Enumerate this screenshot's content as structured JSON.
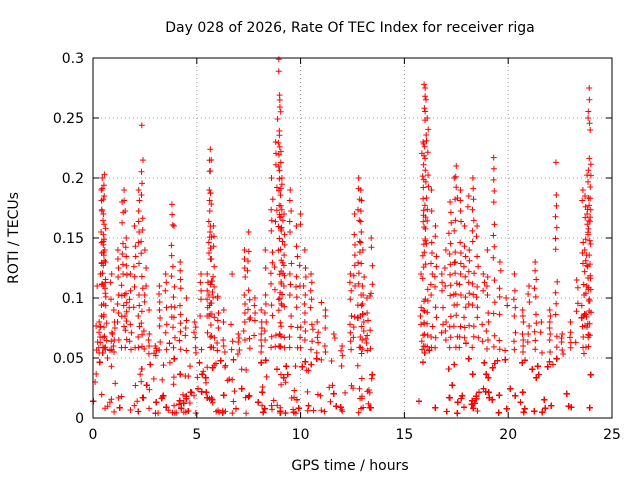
{
  "chart_data": {
    "type": "scatter",
    "title": "Day 028 of 2026, Rate Of TEC Index for receiver riga",
    "xlabel": "GPS time / hours",
    "ylabel": "ROTI / TECUs",
    "xlim": [
      0,
      25
    ],
    "ylim": [
      0,
      0.3
    ],
    "x_ticks": [
      0,
      5,
      10,
      15,
      20,
      25
    ],
    "y_ticks": [
      0,
      0.05,
      0.1,
      0.15,
      0.2,
      0.25,
      0.3
    ],
    "x_tick_labels": [
      "0",
      "5",
      "10",
      "15",
      "20",
      "25"
    ],
    "y_tick_labels": [
      "0",
      "0.05",
      "0.1",
      "0.15",
      "0.2",
      "0.25",
      "0.3"
    ],
    "grid": true,
    "marker": "plus",
    "series_color": "#ff0000",
    "series": [
      {
        "name": "ROTI",
        "points": [
          [
            0.1,
            0.03
          ],
          [
            0.2,
            0.11
          ],
          [
            0.3,
            0.08
          ],
          [
            0.4,
            0.19
          ],
          [
            0.45,
            0.2
          ],
          [
            0.5,
            0.17
          ],
          [
            0.55,
            0.203
          ],
          [
            0.6,
            0.13
          ],
          [
            0.7,
            0.05
          ],
          [
            0.9,
            0.12
          ],
          [
            1.0,
            0.09
          ],
          [
            1.2,
            0.14
          ],
          [
            1.4,
            0.18
          ],
          [
            1.5,
            0.19
          ],
          [
            1.6,
            0.15
          ],
          [
            1.8,
            0.12
          ],
          [
            2.0,
            0.16
          ],
          [
            2.2,
            0.19
          ],
          [
            2.35,
            0.244
          ],
          [
            2.5,
            0.14
          ],
          [
            2.7,
            0.09
          ],
          [
            3.0,
            0.06
          ],
          [
            3.2,
            0.11
          ],
          [
            3.5,
            0.12
          ],
          [
            3.8,
            0.178
          ],
          [
            3.9,
            0.16
          ],
          [
            4.2,
            0.13
          ],
          [
            4.5,
            0.1
          ],
          [
            4.9,
            0.08
          ],
          [
            5.2,
            0.12
          ],
          [
            5.5,
            0.12
          ],
          [
            5.6,
            0.19
          ],
          [
            5.65,
            0.224
          ],
          [
            5.7,
            0.215
          ],
          [
            5.8,
            0.16
          ],
          [
            6.0,
            0.1
          ],
          [
            6.3,
            0.09
          ],
          [
            6.7,
            0.12
          ],
          [
            7.0,
            0.07
          ],
          [
            7.3,
            0.14
          ],
          [
            7.5,
            0.155
          ],
          [
            7.8,
            0.1
          ],
          [
            8.1,
            0.09
          ],
          [
            8.3,
            0.14
          ],
          [
            8.6,
            0.2
          ],
          [
            8.8,
            0.23
          ],
          [
            8.95,
            0.299
          ],
          [
            9.0,
            0.265
          ],
          [
            9.05,
            0.222
          ],
          [
            9.1,
            0.2
          ],
          [
            9.2,
            0.17
          ],
          [
            9.5,
            0.19
          ],
          [
            9.8,
            0.16
          ],
          [
            10.0,
            0.17
          ],
          [
            10.2,
            0.14
          ],
          [
            10.5,
            0.12
          ],
          [
            10.8,
            0.08
          ],
          [
            11.2,
            0.09
          ],
          [
            11.6,
            0.07
          ],
          [
            12.0,
            0.06
          ],
          [
            12.4,
            0.12
          ],
          [
            12.6,
            0.17
          ],
          [
            12.8,
            0.2
          ],
          [
            12.9,
            0.19
          ],
          [
            13.0,
            0.14
          ],
          [
            13.2,
            0.1
          ],
          [
            13.4,
            0.15
          ],
          [
            15.8,
            0.12
          ],
          [
            15.9,
            0.23
          ],
          [
            15.95,
            0.278
          ],
          [
            16.0,
            0.275
          ],
          [
            16.1,
            0.25
          ],
          [
            16.3,
            0.19
          ],
          [
            16.5,
            0.16
          ],
          [
            16.8,
            0.12
          ],
          [
            17.0,
            0.14
          ],
          [
            17.2,
            0.18
          ],
          [
            17.4,
            0.2
          ],
          [
            17.5,
            0.21
          ],
          [
            17.7,
            0.19
          ],
          [
            17.9,
            0.16
          ],
          [
            18.1,
            0.185
          ],
          [
            18.3,
            0.2
          ],
          [
            18.5,
            0.16
          ],
          [
            18.8,
            0.12
          ],
          [
            19.0,
            0.14
          ],
          [
            19.3,
            0.217
          ],
          [
            19.6,
            0.13
          ],
          [
            19.9,
            0.1
          ],
          [
            20.3,
            0.12
          ],
          [
            20.7,
            0.09
          ],
          [
            21.0,
            0.11
          ],
          [
            21.3,
            0.13
          ],
          [
            21.6,
            0.08
          ],
          [
            22.0,
            0.09
          ],
          [
            22.3,
            0.213
          ],
          [
            22.6,
            0.07
          ],
          [
            23.0,
            0.08
          ],
          [
            23.3,
            0.115
          ],
          [
            23.6,
            0.19
          ],
          [
            23.7,
            0.185
          ],
          [
            23.8,
            0.17
          ],
          [
            23.85,
            0.25
          ],
          [
            23.9,
            0.275
          ],
          [
            23.95,
            0.24
          ]
        ],
        "baseline_band": {
          "coverage_hours": [
            [
              0.0,
              13.5
            ],
            [
              15.7,
              24.0
            ]
          ],
          "min": 0.004,
          "typical_max": 0.05
        }
      }
    ]
  }
}
